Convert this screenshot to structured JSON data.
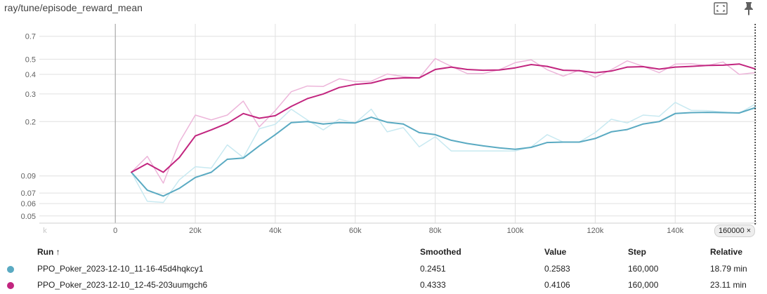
{
  "header": {
    "title": "ray/tune/episode_reward_mean",
    "fullscreen_icon": "fullscreen-icon",
    "pin_icon": "pin-icon"
  },
  "chart_data": {
    "type": "line",
    "title": "ray/tune/episode_reward_mean",
    "y_scale": "log",
    "ylim": [
      0.045,
      0.84
    ],
    "xlim": [
      -19000,
      160500
    ],
    "y_ticks": [
      "0.05",
      "0.06",
      "0.07",
      "0.09",
      "0.2",
      "0.3",
      "0.4",
      "0.5",
      "0.7"
    ],
    "y_faint_ticks": [
      "0.05",
      "0.06",
      "0.07",
      "0.09",
      "0.2",
      "0.3",
      "0.4",
      "0.5",
      "0.7"
    ],
    "x_ticks": [
      0,
      20000,
      40000,
      60000,
      80000,
      100000,
      120000,
      140000
    ],
    "x_tick_labels": [
      "0",
      "20k",
      "40k",
      "60k",
      "80k",
      "100k",
      "120k",
      "140k"
    ],
    "x_faint_label": "k",
    "cursor_step": 160000,
    "cursor_label": "160000 ×",
    "grid": true,
    "legend": "table-below",
    "series": [
      {
        "name": "PPO_Poker_2023-12-10_11-16-45d4hqkcy1",
        "color": "#5aaac2",
        "raw_color": "#c8e9f1",
        "x": [
          4000,
          8000,
          12000,
          16000,
          20000,
          24000,
          28000,
          32000,
          36000,
          40000,
          44000,
          48000,
          52000,
          56000,
          60000,
          64000,
          68000,
          72000,
          76000,
          80000,
          84000,
          88000,
          92000,
          96000,
          100000,
          104000,
          108000,
          112000,
          116000,
          120000,
          124000,
          128000,
          132000,
          136000,
          140000,
          144000,
          148000,
          152000,
          156000,
          160000
        ],
        "smoothed": [
          0.095,
          0.073,
          0.067,
          0.075,
          0.088,
          0.095,
          0.115,
          0.117,
          0.14,
          0.165,
          0.197,
          0.2,
          0.193,
          0.197,
          0.196,
          0.213,
          0.198,
          0.193,
          0.17,
          0.165,
          0.152,
          0.145,
          0.14,
          0.136,
          0.133,
          0.137,
          0.147,
          0.148,
          0.148,
          0.156,
          0.172,
          0.178,
          0.193,
          0.2,
          0.225,
          0.228,
          0.229,
          0.228,
          0.227,
          0.2451
        ],
        "values": [
          0.095,
          0.062,
          0.061,
          0.085,
          0.103,
          0.101,
          0.142,
          0.118,
          0.18,
          0.192,
          0.24,
          0.205,
          0.177,
          0.207,
          0.196,
          0.24,
          0.172,
          0.183,
          0.138,
          0.16,
          0.13,
          0.13,
          0.13,
          0.13,
          0.13,
          0.138,
          0.165,
          0.148,
          0.148,
          0.17,
          0.207,
          0.196,
          0.22,
          0.216,
          0.265,
          0.236,
          0.235,
          0.23,
          0.226,
          0.2583
        ]
      },
      {
        "name": "PPO_Poker_2023-12-10_12-45-203uumgch6",
        "color": "#c2257f",
        "raw_color": "#edb6da",
        "x": [
          4000,
          8000,
          12000,
          16000,
          20000,
          24000,
          28000,
          32000,
          36000,
          40000,
          44000,
          48000,
          52000,
          56000,
          60000,
          64000,
          68000,
          72000,
          76000,
          80000,
          84000,
          88000,
          92000,
          96000,
          100000,
          104000,
          108000,
          112000,
          116000,
          120000,
          124000,
          128000,
          132000,
          136000,
          140000,
          144000,
          148000,
          152000,
          156000,
          160000
        ],
        "smoothed": [
          0.095,
          0.108,
          0.095,
          0.118,
          0.162,
          0.177,
          0.195,
          0.225,
          0.21,
          0.218,
          0.25,
          0.28,
          0.3,
          0.33,
          0.345,
          0.352,
          0.374,
          0.38,
          0.38,
          0.43,
          0.445,
          0.43,
          0.425,
          0.427,
          0.44,
          0.462,
          0.45,
          0.425,
          0.422,
          0.41,
          0.42,
          0.445,
          0.448,
          0.432,
          0.445,
          0.45,
          0.456,
          0.458,
          0.466,
          0.4333
        ],
        "values": [
          0.095,
          0.12,
          0.081,
          0.148,
          0.22,
          0.205,
          0.22,
          0.27,
          0.185,
          0.235,
          0.31,
          0.337,
          0.335,
          0.375,
          0.36,
          0.362,
          0.402,
          0.388,
          0.38,
          0.505,
          0.45,
          0.405,
          0.405,
          0.428,
          0.475,
          0.495,
          0.428,
          0.39,
          0.425,
          0.383,
          0.428,
          0.488,
          0.45,
          0.41,
          0.465,
          0.468,
          0.455,
          0.48,
          0.4,
          0.4106
        ]
      }
    ]
  },
  "table": {
    "columns": {
      "run": "Run ↑",
      "smoothed": "Smoothed",
      "value": "Value",
      "step": "Step",
      "relative": "Relative"
    },
    "rows": [
      {
        "color": "#5aaac2",
        "run": "PPO_Poker_2023-12-10_11-16-45d4hqkcy1",
        "smoothed": "0.2451",
        "value": "0.2583",
        "step": "160,000",
        "relative": "18.79 min"
      },
      {
        "color": "#c2257f",
        "run": "PPO_Poker_2023-12-10_12-45-203uumgch6",
        "smoothed": "0.4333",
        "value": "0.4106",
        "step": "160,000",
        "relative": "23.11 min"
      }
    ]
  }
}
